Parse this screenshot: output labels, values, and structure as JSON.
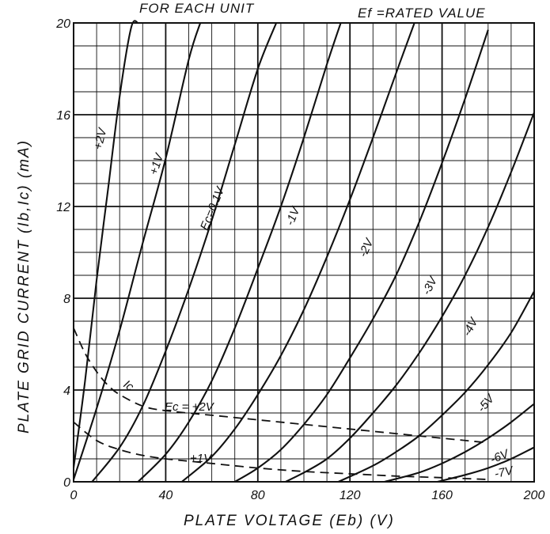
{
  "chart_data": {
    "type": "line",
    "title": "FOR EACH UNIT",
    "subtitle": "Ef =RATED VALUE",
    "xlabel": "PLATE  VOLTAGE (Eb) (V)",
    "ylabel": "PLATE GRID  CURRENT  (Ib,Ic) (mA)",
    "xlim": [
      0,
      200
    ],
    "ylim": [
      0,
      20
    ],
    "x_ticks": [
      "0",
      "40",
      "80",
      "120",
      "160",
      "200"
    ],
    "y_ticks": [
      "0",
      "4",
      "8",
      "12",
      "16",
      "20"
    ],
    "grid": true,
    "plate_series": [
      {
        "label": "+2V",
        "x": [
          0,
          5,
          10,
          15,
          20,
          25,
          28
        ],
        "y": [
          0.6,
          4.4,
          8.8,
          12.8,
          16.8,
          19.8,
          20
        ]
      },
      {
        "label": "+1V",
        "x": [
          0,
          10,
          20,
          30,
          40,
          50,
          55
        ],
        "y": [
          0.1,
          3.2,
          6.6,
          10.4,
          14.1,
          18.4,
          20
        ]
      },
      {
        "label": "Ec=0.1V",
        "x": [
          8,
          20,
          30,
          40,
          50,
          60,
          70,
          80,
          88
        ],
        "y": [
          0,
          1.5,
          3.3,
          5.7,
          8.4,
          11.4,
          14.7,
          18.0,
          20
        ]
      },
      {
        "label": "-1V",
        "x": [
          28,
          40,
          50,
          60,
          70,
          80,
          90,
          100,
          110,
          116
        ],
        "y": [
          0,
          1.2,
          2.6,
          4.4,
          6.7,
          9.3,
          12.0,
          15.0,
          18.2,
          20
        ]
      },
      {
        "label": "-2V",
        "x": [
          47,
          60,
          70,
          80,
          90,
          100,
          110,
          120,
          130,
          140,
          148
        ],
        "y": [
          0,
          1.1,
          2.3,
          3.8,
          5.5,
          7.5,
          9.8,
          12.3,
          15.0,
          17.8,
          20
        ]
      },
      {
        "label": "-3V",
        "x": [
          70,
          80,
          90,
          100,
          110,
          120,
          130,
          140,
          150,
          160,
          170,
          180
        ],
        "y": [
          0,
          0.6,
          1.4,
          2.5,
          3.8,
          5.4,
          7.1,
          9.0,
          11.3,
          13.9,
          16.7,
          19.7
        ]
      },
      {
        "label": "-4V",
        "x": [
          92,
          100,
          110,
          120,
          130,
          140,
          150,
          160,
          170,
          180,
          190,
          200
        ],
        "y": [
          0,
          0.4,
          1.0,
          1.9,
          3.0,
          4.2,
          5.6,
          7.2,
          9.0,
          11.1,
          13.5,
          16.1
        ]
      },
      {
        "label": "-5V",
        "x": [
          115,
          130,
          140,
          150,
          160,
          170,
          180,
          190,
          200
        ],
        "y": [
          0,
          0.7,
          1.3,
          2.0,
          2.9,
          3.9,
          5.1,
          6.5,
          8.3
        ]
      },
      {
        "label": "-6V",
        "x": [
          135,
          150,
          160,
          170,
          180,
          190,
          200
        ],
        "y": [
          0,
          0.4,
          0.8,
          1.3,
          1.9,
          2.6,
          3.4
        ]
      },
      {
        "label": "-7V",
        "x": [
          158,
          170,
          180,
          190,
          200
        ],
        "y": [
          0,
          0.3,
          0.6,
          1.0,
          1.5
        ]
      }
    ],
    "grid_current_series": [
      {
        "label": "Ec = +2V",
        "x": [
          0,
          5,
          10,
          15,
          20,
          30,
          40,
          60,
          80,
          100,
          120,
          140,
          160,
          180
        ],
        "y": [
          6.7,
          5.6,
          4.8,
          4.2,
          3.8,
          3.3,
          3.1,
          2.9,
          2.7,
          2.5,
          2.3,
          2.1,
          1.9,
          1.7
        ]
      },
      {
        "label": "+1V",
        "x": [
          0,
          10,
          20,
          30,
          40,
          50,
          60,
          80,
          100,
          120,
          140,
          160,
          180
        ],
        "y": [
          2.6,
          1.8,
          1.4,
          1.15,
          1.0,
          0.9,
          0.8,
          0.6,
          0.45,
          0.35,
          0.25,
          0.18,
          0.1
        ]
      }
    ],
    "annotations": {
      "ic": "Ic"
    }
  }
}
